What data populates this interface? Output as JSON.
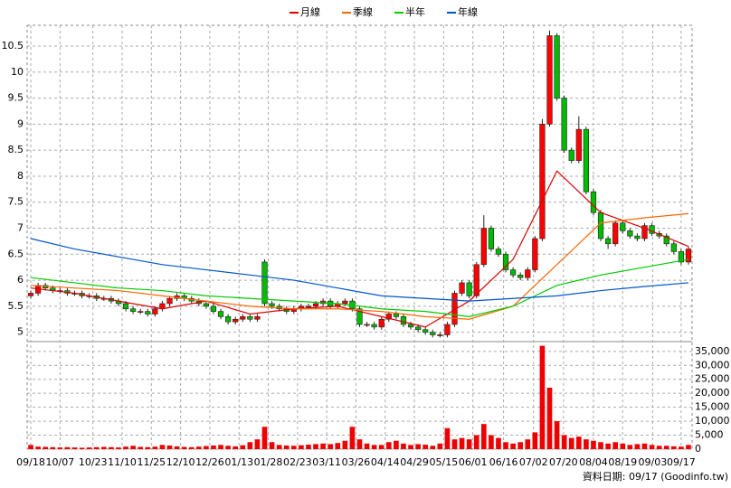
{
  "chart_data": {
    "type": "candlestick",
    "open": [
      5.7,
      5.75,
      5.9,
      5.85,
      5.8,
      5.8,
      5.75,
      5.75,
      5.7,
      5.7,
      5.65,
      5.65,
      5.6,
      5.55,
      5.45,
      5.4,
      5.4,
      5.35,
      5.45,
      5.55,
      5.65,
      5.7,
      5.65,
      5.6,
      5.55,
      5.5,
      5.4,
      5.3,
      5.2,
      5.25,
      5.3,
      5.25,
      6.35,
      5.55,
      5.5,
      5.45,
      5.4,
      5.45,
      5.5,
      5.5,
      5.55,
      5.6,
      5.5,
      5.55,
      5.6,
      5.45,
      5.15,
      5.15,
      5.1,
      5.25,
      5.35,
      5.3,
      5.15,
      5.1,
      5.05,
      5.0,
      4.95,
      4.95,
      5.15,
      5.75,
      5.95,
      5.7,
      6.3,
      7.0,
      6.6,
      6.5,
      6.2,
      6.1,
      6.05,
      6.2,
      6.8,
      9.0,
      10.7,
      9.5,
      8.5,
      8.3,
      8.9,
      7.7,
      7.3,
      6.8,
      6.7,
      7.1,
      6.95,
      6.85,
      6.8,
      7.05,
      6.9,
      6.85,
      6.7,
      6.55,
      6.35
    ],
    "high": [
      5.8,
      5.95,
      5.95,
      5.9,
      5.85,
      5.85,
      5.8,
      5.8,
      5.75,
      5.75,
      5.7,
      5.7,
      5.65,
      5.6,
      5.5,
      5.45,
      5.45,
      5.5,
      5.6,
      5.7,
      5.75,
      5.75,
      5.7,
      5.65,
      5.6,
      5.55,
      5.45,
      5.35,
      5.3,
      5.35,
      5.35,
      5.35,
      6.4,
      5.6,
      5.55,
      5.5,
      5.5,
      5.55,
      5.55,
      5.6,
      5.65,
      5.65,
      5.6,
      5.65,
      5.65,
      5.5,
      5.2,
      5.2,
      5.3,
      5.4,
      5.4,
      5.35,
      5.2,
      5.15,
      5.1,
      5.05,
      5.0,
      5.2,
      5.8,
      6.0,
      6.0,
      6.35,
      7.25,
      7.05,
      6.65,
      6.55,
      6.25,
      6.15,
      6.25,
      6.85,
      9.1,
      10.8,
      10.75,
      9.55,
      8.55,
      9.15,
      8.95,
      7.75,
      7.35,
      6.85,
      7.15,
      7.15,
      7.0,
      6.9,
      7.1,
      7.1,
      6.95,
      6.9,
      6.75,
      6.6,
      6.65
    ],
    "low": [
      5.65,
      5.7,
      5.8,
      5.75,
      5.75,
      5.7,
      5.7,
      5.65,
      5.65,
      5.6,
      5.6,
      5.55,
      5.5,
      5.4,
      5.35,
      5.35,
      5.3,
      5.3,
      5.4,
      5.5,
      5.6,
      5.6,
      5.55,
      5.5,
      5.45,
      5.35,
      5.25,
      5.15,
      5.15,
      5.2,
      5.2,
      5.2,
      5.5,
      5.45,
      5.4,
      5.35,
      5.35,
      5.4,
      5.45,
      5.45,
      5.5,
      5.45,
      5.45,
      5.5,
      5.4,
      5.1,
      5.1,
      5.05,
      5.05,
      5.2,
      5.25,
      5.1,
      5.05,
      5.0,
      4.95,
      4.9,
      4.9,
      4.9,
      5.1,
      5.7,
      5.65,
      5.65,
      6.25,
      6.55,
      6.45,
      6.15,
      6.05,
      6.0,
      6.0,
      6.15,
      6.75,
      8.95,
      9.45,
      8.45,
      8.25,
      8.25,
      7.65,
      7.25,
      6.75,
      6.6,
      6.65,
      6.9,
      6.8,
      6.75,
      6.75,
      6.85,
      6.8,
      6.65,
      6.5,
      6.3,
      6.3
    ],
    "close": [
      5.75,
      5.9,
      5.85,
      5.8,
      5.8,
      5.75,
      5.75,
      5.7,
      5.7,
      5.65,
      5.65,
      5.6,
      5.55,
      5.45,
      5.4,
      5.4,
      5.35,
      5.45,
      5.55,
      5.65,
      5.7,
      5.65,
      5.6,
      5.55,
      5.5,
      5.4,
      5.3,
      5.2,
      5.25,
      5.3,
      5.25,
      5.3,
      5.55,
      5.5,
      5.45,
      5.4,
      5.45,
      5.5,
      5.5,
      5.55,
      5.6,
      5.5,
      5.55,
      5.6,
      5.45,
      5.15,
      5.15,
      5.1,
      5.25,
      5.35,
      5.3,
      5.15,
      5.1,
      5.05,
      5.0,
      4.95,
      4.95,
      5.15,
      5.75,
      5.95,
      5.7,
      6.3,
      7.0,
      6.6,
      6.5,
      6.2,
      6.1,
      6.05,
      6.2,
      6.8,
      9.0,
      10.7,
      9.5,
      8.5,
      8.3,
      8.9,
      7.7,
      7.3,
      6.8,
      6.7,
      7.1,
      6.95,
      6.85,
      6.8,
      7.05,
      6.9,
      6.85,
      6.7,
      6.55,
      6.35,
      6.6
    ],
    "up_color": "#ff0000",
    "down_color": "#00bb00",
    "volume": {
      "color": "#ee0000",
      "values": [
        1500,
        900,
        800,
        700,
        600,
        700,
        600,
        500,
        600,
        700,
        800,
        700,
        600,
        900,
        1200,
        800,
        700,
        900,
        1500,
        1300,
        1000,
        800,
        700,
        900,
        1100,
        1300,
        1500,
        1200,
        1000,
        1400,
        2500,
        3500,
        8000,
        2500,
        1500,
        1300,
        1200,
        1400,
        1600,
        1800,
        2000,
        1800,
        2200,
        3000,
        8000,
        3500,
        2000,
        1500,
        1500,
        2500,
        3000,
        2000,
        1500,
        1800,
        1600,
        1200,
        2000,
        7500,
        3500,
        4000,
        3500,
        5000,
        9000,
        5000,
        4000,
        2500,
        2000,
        2500,
        3500,
        6000,
        37000,
        22000,
        10000,
        5000,
        4000,
        4500,
        3500,
        3000,
        2500,
        2000,
        2500,
        2000,
        1500,
        1800,
        2000,
        1500,
        1200,
        1200,
        1000,
        900,
        1500
      ]
    },
    "series": [
      {
        "name": "月線",
        "color": "#dd0000",
        "x": [
          0,
          6,
          12,
          18,
          24,
          30,
          36,
          42,
          48,
          54,
          60,
          66,
          72,
          78,
          84,
          90
        ],
        "values": [
          5.85,
          5.75,
          5.6,
          5.45,
          5.6,
          5.35,
          5.45,
          5.5,
          5.3,
          5.1,
          5.6,
          6.4,
          8.1,
          7.3,
          7.0,
          6.65
        ]
      },
      {
        "name": "季線",
        "color": "#ff6600",
        "x": [
          0,
          6,
          12,
          18,
          24,
          30,
          36,
          42,
          48,
          54,
          60,
          66,
          72,
          78,
          84,
          90
        ],
        "values": [
          5.9,
          5.85,
          5.8,
          5.7,
          5.6,
          5.5,
          5.45,
          5.45,
          5.4,
          5.3,
          5.25,
          5.5,
          6.3,
          7.1,
          7.2,
          7.28
        ]
      },
      {
        "name": "半年",
        "color": "#00cc00",
        "x": [
          0,
          6,
          12,
          18,
          24,
          30,
          36,
          42,
          48,
          54,
          60,
          66,
          72,
          78,
          84,
          90
        ],
        "values": [
          6.05,
          5.95,
          5.85,
          5.8,
          5.7,
          5.65,
          5.6,
          5.55,
          5.45,
          5.4,
          5.3,
          5.5,
          5.9,
          6.1,
          6.25,
          6.4
        ]
      },
      {
        "name": "年線",
        "color": "#0055cc",
        "x": [
          0,
          6,
          12,
          18,
          24,
          30,
          36,
          42,
          48,
          54,
          60,
          66,
          72,
          78,
          84,
          90
        ],
        "values": [
          6.8,
          6.6,
          6.45,
          6.3,
          6.2,
          6.1,
          6.0,
          5.85,
          5.7,
          5.65,
          5.6,
          5.65,
          5.7,
          5.8,
          5.88,
          5.95
        ]
      }
    ],
    "ylim": [
      4.82,
      10.9
    ],
    "yticks": [
      5,
      5.5,
      6,
      6.5,
      7,
      7.5,
      8,
      8.5,
      9,
      9.5,
      10,
      10.5
    ],
    "y2lim": [
      0,
      38500
    ],
    "y2ticks": [
      0,
      {
        "value": 5000,
        "label": "5,000"
      },
      {
        "value": 10000,
        "label": "10,000"
      },
      {
        "value": 15000,
        "label": "15,000"
      },
      {
        "value": 20000,
        "label": "20,000"
      },
      {
        "value": 25000,
        "label": "25,000"
      },
      {
        "value": 30000,
        "label": "30,000"
      },
      {
        "value": 35000,
        "label": "35,000"
      }
    ],
    "xlim": [
      -0.5,
      90.5
    ],
    "xticks": [
      {
        "value": 0,
        "label": "09/18"
      },
      {
        "value": 4,
        "label": "10/07"
      },
      {
        "value": 8.5,
        "label": "10/23"
      },
      {
        "value": 12.5,
        "label": "11/10"
      },
      {
        "value": 16.5,
        "label": "11/25"
      },
      {
        "value": 20.5,
        "label": "12/10"
      },
      {
        "value": 24.5,
        "label": "12/26"
      },
      {
        "value": 28.5,
        "label": "01/13"
      },
      {
        "value": 32.5,
        "label": "01/28"
      },
      {
        "value": 36.5,
        "label": "02/23"
      },
      {
        "value": 40.5,
        "label": "03/11"
      },
      {
        "value": 44.5,
        "label": "03/26"
      },
      {
        "value": 48.5,
        "label": "04/14"
      },
      {
        "value": 52.5,
        "label": "04/29"
      },
      {
        "value": 56.5,
        "label": "05/15"
      },
      {
        "value": 60.5,
        "label": "06/01"
      },
      {
        "value": 64.7,
        "label": "06/16"
      },
      {
        "value": 68.8,
        "label": "07/02"
      },
      {
        "value": 72.9,
        "label": "07/20"
      },
      {
        "value": 77,
        "label": "08/04"
      },
      {
        "value": 81,
        "label": "08/19"
      },
      {
        "value": 85.1,
        "label": "09/03"
      },
      {
        "value": 89,
        "label": "09/17"
      }
    ],
    "grid": true,
    "footnote": "資料日期: 09/17 (Goodinfo.tw)"
  }
}
